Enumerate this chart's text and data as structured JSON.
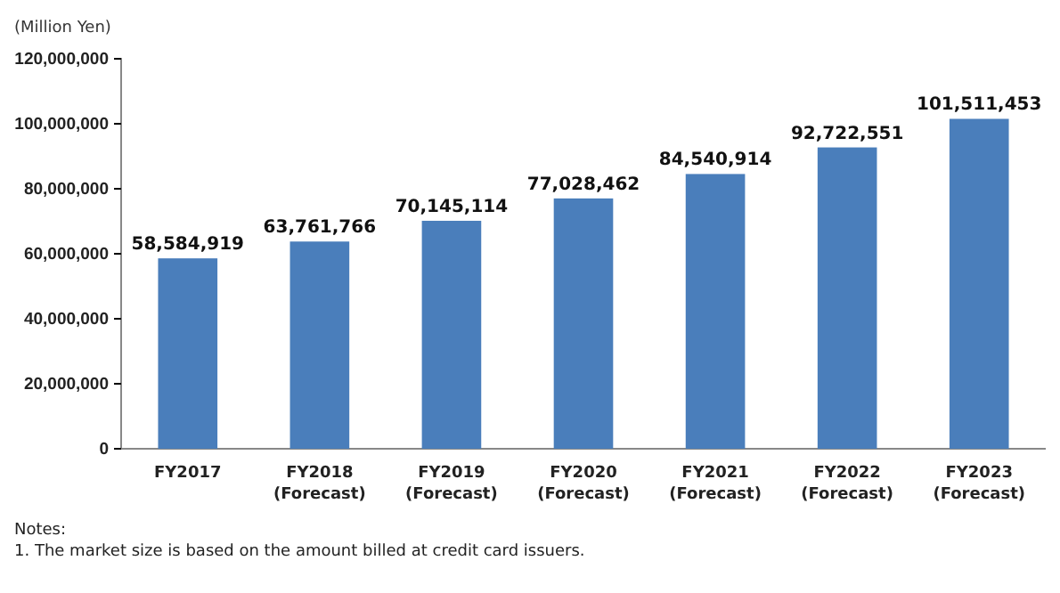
{
  "chart_data": {
    "type": "bar",
    "ylabel": "(Million Yen)",
    "categories": [
      "FY2017",
      "FY2018\n(Forecast)",
      "FY2019\n(Forecast)",
      "FY2020\n(Forecast)",
      "FY2021\n(Forecast)",
      "FY2022\n(Forecast)",
      "FY2023\n(Forecast)"
    ],
    "values": [
      58584919,
      63761766,
      70145114,
      77028462,
      84540914,
      92722551,
      101511453
    ],
    "color": "#4a7ebb",
    "ylim": [
      0,
      120000000
    ],
    "yticks": [
      {
        "value": 0,
        "label": "0"
      },
      {
        "value": 20000000,
        "label": "20,000,000"
      },
      {
        "value": 40000000,
        "label": "40,000,000"
      },
      {
        "value": 60000000,
        "label": "60,000,000"
      },
      {
        "value": 80000000,
        "label": "80,000,000"
      },
      {
        "value": 100000000,
        "label": "100,000,000"
      },
      {
        "value": 120000000,
        "label": "120,000,000"
      }
    ],
    "value_labels": [
      "58,584,919",
      "63,761,766",
      "70,145,114",
      "77,028,462",
      "84,540,914",
      "92,722,551",
      "101,511,453"
    ],
    "grid": false,
    "annotations": [
      "Notes:",
      "1.  The market size is based on the amount billed at credit card issuers."
    ]
  }
}
